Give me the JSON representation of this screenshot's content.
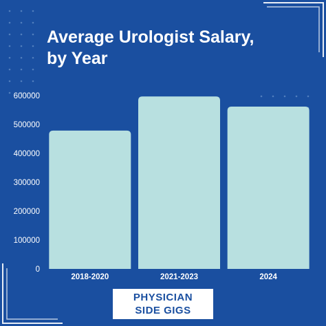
{
  "colors": {
    "background": "#1a4fa0",
    "bar": "#b8e0e0",
    "text": "#ffffff",
    "brand_text": "#1a4fa0"
  },
  "title": {
    "line1": "Average Urologist Salary,",
    "line2": "by Year"
  },
  "brand": {
    "line1": "PHYSICIAN",
    "line2": "SIDE GIGS"
  },
  "chart_data": {
    "type": "bar",
    "title": "Average Urologist Salary, by Year",
    "categories": [
      "2018-2020",
      "2021-2023",
      "2024"
    ],
    "values": [
      479000,
      597000,
      562000
    ],
    "xlabel": "",
    "ylabel": "",
    "ylim": [
      0,
      600000
    ],
    "yticks": [
      0,
      100000,
      200000,
      300000,
      400000,
      500000,
      600000
    ],
    "ytick_labels": [
      "0",
      "100000",
      "200000",
      "300000",
      "400000",
      "500000",
      "600000"
    ],
    "grid": false,
    "legend": "none"
  }
}
